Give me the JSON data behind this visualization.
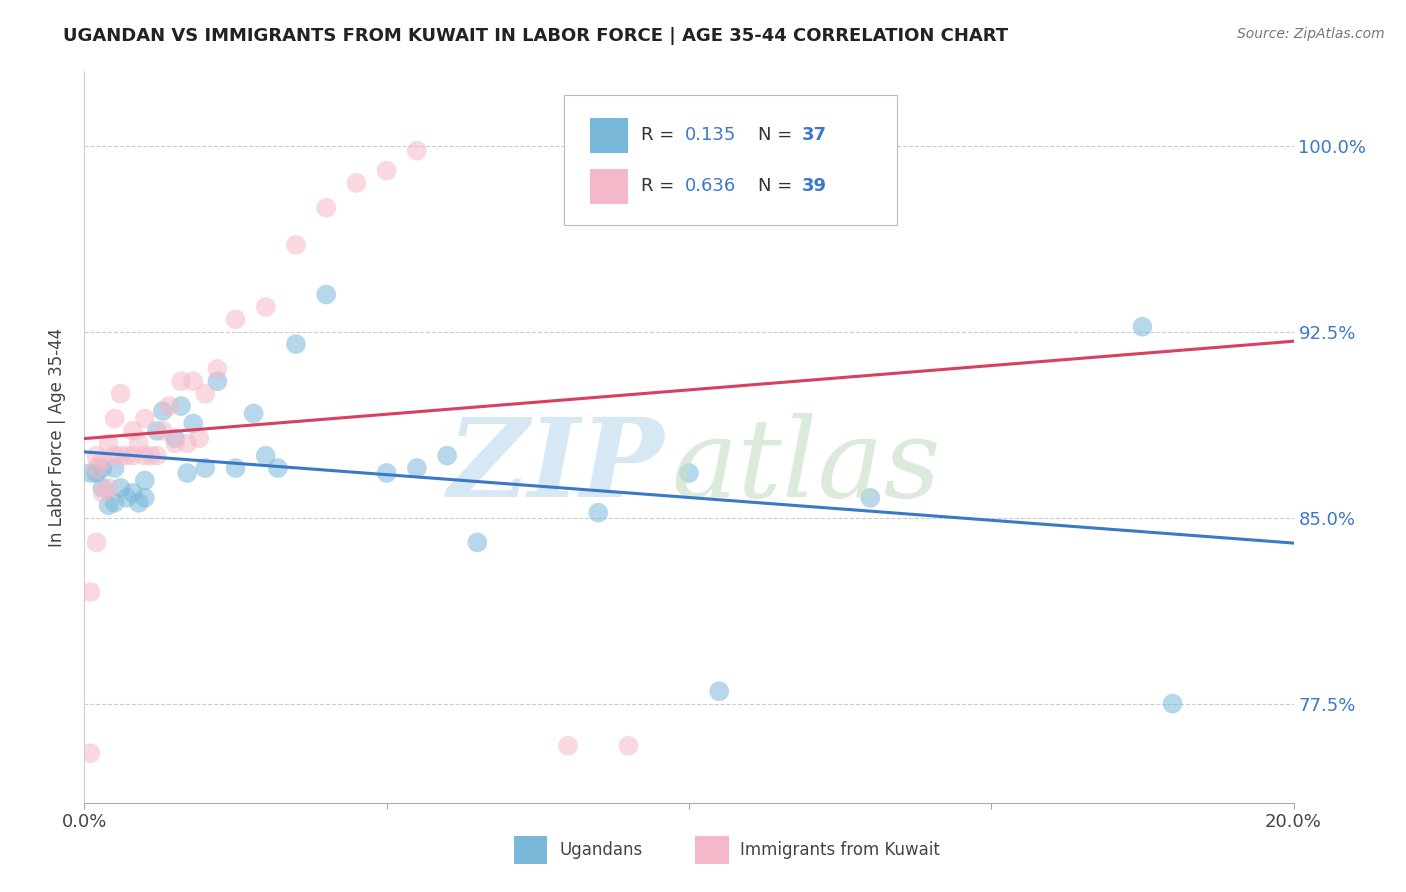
{
  "title": "UGANDAN VS IMMIGRANTS FROM KUWAIT IN LABOR FORCE | AGE 35-44 CORRELATION CHART",
  "source_text": "Source: ZipAtlas.com",
  "ylabel": "In Labor Force | Age 35-44",
  "xlim": [
    0.0,
    0.2
  ],
  "ylim": [
    0.735,
    1.03
  ],
  "yticks": [
    0.775,
    0.85,
    0.925,
    1.0
  ],
  "ytick_labels": [
    "77.5%",
    "85.0%",
    "92.5%",
    "100.0%"
  ],
  "xticks": [
    0.0,
    0.05,
    0.1,
    0.15,
    0.2
  ],
  "xtick_labels": [
    "0.0%",
    "",
    "",
    "",
    "20.0%"
  ],
  "legend_r_blue": "0.135",
  "legend_n_blue": "37",
  "legend_r_pink": "0.636",
  "legend_n_pink": "39",
  "blue_color": "#7ab8d9",
  "pink_color": "#f5b8c8",
  "blue_line_color": "#3c78c8",
  "pink_line_color": "#d94060",
  "blue_scatter_x": [
    0.001,
    0.002,
    0.003,
    0.003,
    0.004,
    0.005,
    0.005,
    0.006,
    0.007,
    0.008,
    0.009,
    0.01,
    0.01,
    0.012,
    0.013,
    0.015,
    0.016,
    0.017,
    0.018,
    0.02,
    0.022,
    0.025,
    0.028,
    0.03,
    0.032,
    0.035,
    0.04,
    0.05,
    0.055,
    0.06,
    0.065,
    0.085,
    0.1,
    0.105,
    0.13,
    0.175,
    0.18
  ],
  "blue_scatter_y": [
    0.868,
    0.868,
    0.862,
    0.87,
    0.855,
    0.856,
    0.87,
    0.862,
    0.858,
    0.86,
    0.856,
    0.858,
    0.865,
    0.885,
    0.893,
    0.882,
    0.895,
    0.868,
    0.888,
    0.87,
    0.905,
    0.87,
    0.892,
    0.875,
    0.87,
    0.92,
    0.94,
    0.868,
    0.87,
    0.875,
    0.84,
    0.852,
    0.868,
    0.78,
    0.858,
    0.927,
    0.775
  ],
  "pink_scatter_x": [
    0.001,
    0.001,
    0.002,
    0.002,
    0.002,
    0.003,
    0.003,
    0.004,
    0.004,
    0.005,
    0.005,
    0.006,
    0.006,
    0.007,
    0.008,
    0.008,
    0.009,
    0.01,
    0.01,
    0.011,
    0.012,
    0.013,
    0.014,
    0.015,
    0.016,
    0.017,
    0.018,
    0.019,
    0.02,
    0.022,
    0.025,
    0.03,
    0.035,
    0.04,
    0.045,
    0.05,
    0.055,
    0.08,
    0.09
  ],
  "pink_scatter_y": [
    0.82,
    0.755,
    0.87,
    0.875,
    0.84,
    0.86,
    0.873,
    0.862,
    0.88,
    0.875,
    0.89,
    0.875,
    0.9,
    0.875,
    0.875,
    0.885,
    0.88,
    0.875,
    0.89,
    0.875,
    0.875,
    0.885,
    0.895,
    0.88,
    0.905,
    0.88,
    0.905,
    0.882,
    0.9,
    0.91,
    0.93,
    0.935,
    0.96,
    0.975,
    0.985,
    0.99,
    0.998,
    0.758,
    0.758
  ]
}
